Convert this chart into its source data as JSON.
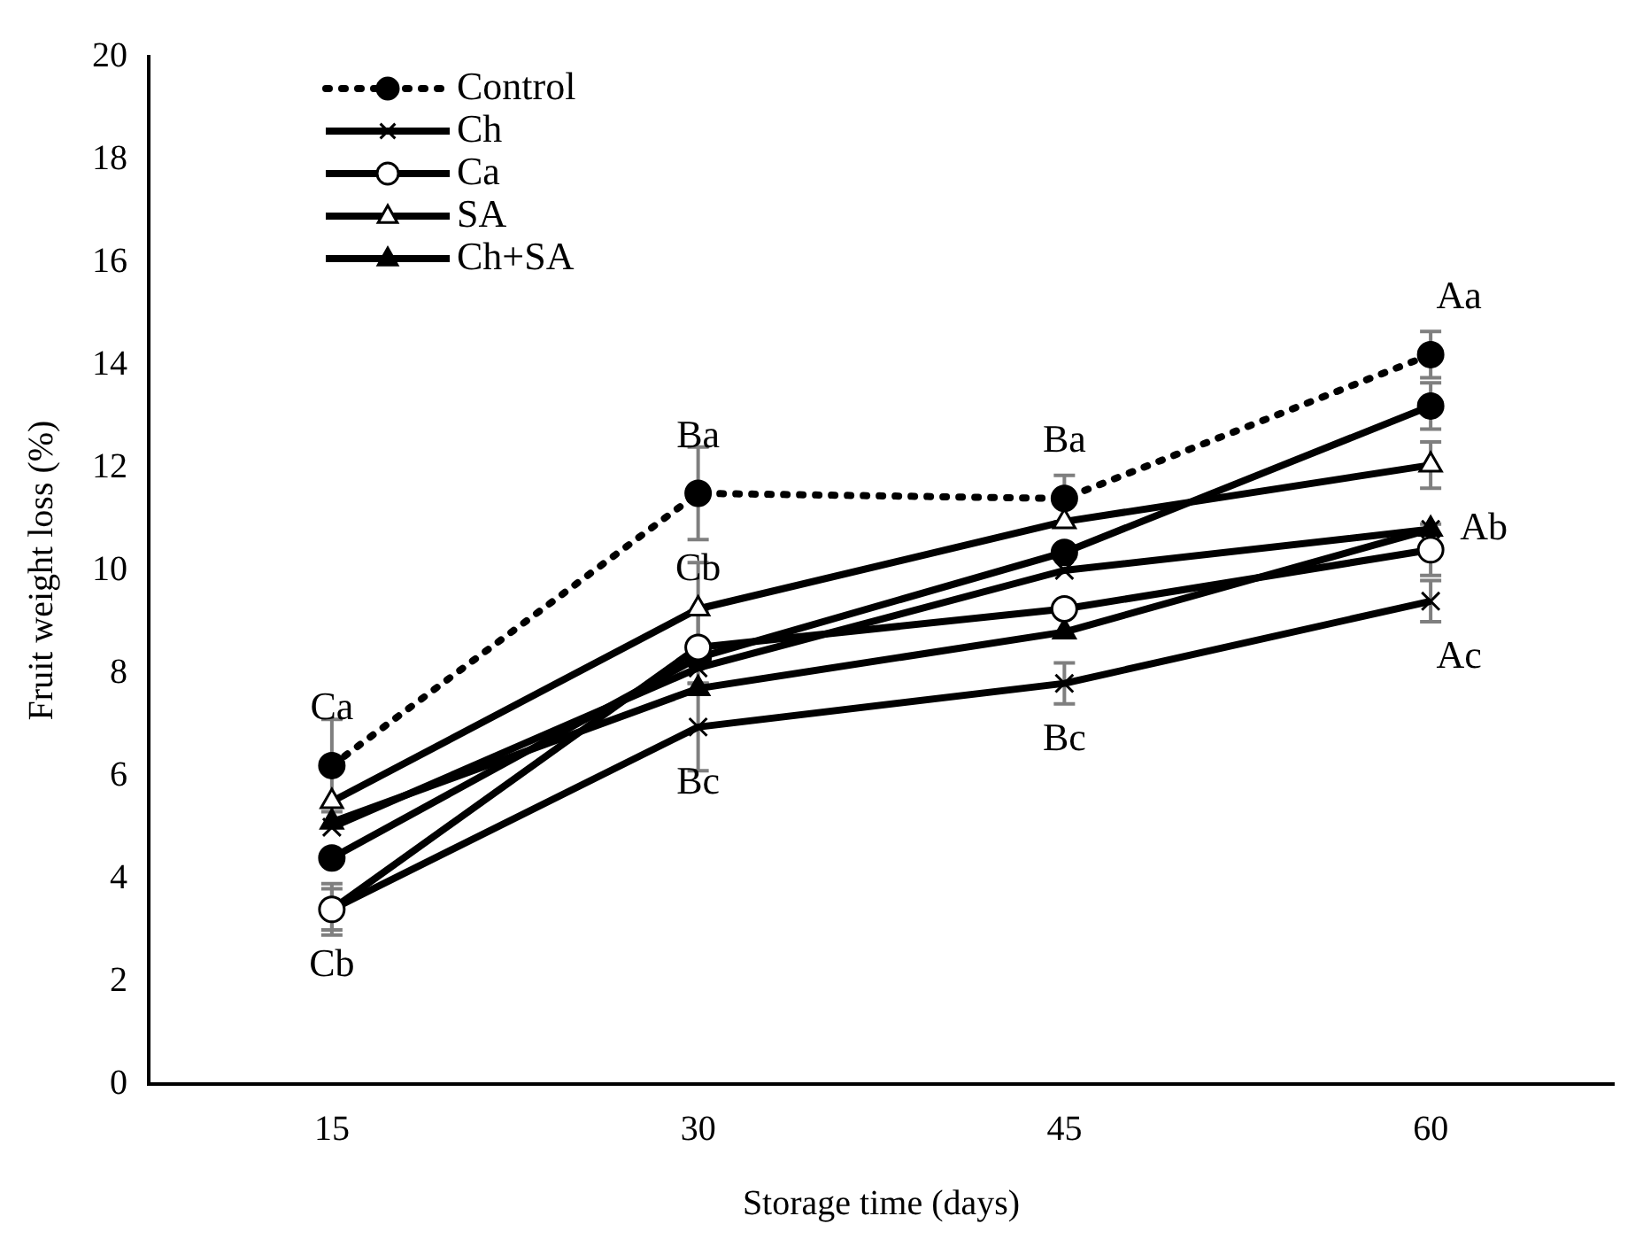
{
  "chart_data": {
    "type": "line",
    "xlabel": "Storage time (days)",
    "ylabel": "Fruit weight loss (%)",
    "categories": [
      "15",
      "30",
      "45",
      "60"
    ],
    "ylim": [
      0,
      20
    ],
    "yticks": [
      0,
      2,
      4,
      6,
      8,
      10,
      12,
      14,
      16,
      18,
      20
    ],
    "grid": false,
    "legend": "top left",
    "series": [
      {
        "name": "Control",
        "color": "#000000",
        "marker": "circle",
        "line_style": "dotted",
        "values": [
          6.2,
          11.5,
          11.4,
          14.2
        ],
        "errors": [
          0.9,
          0.9,
          0.45,
          0.45
        ]
      },
      {
        "name": "Ch",
        "color": "#000000",
        "marker": "cross",
        "line_style": "solid",
        "values": [
          5.0,
          8.1,
          10.0,
          10.8
        ]
      },
      {
        "name": "Ca",
        "color": "#000000",
        "colors": [
          "#ffffff",
          "#ffffff",
          "#ffffff",
          "#ffffff"
        ],
        "marker": "circle",
        "line_style": "solid",
        "values": [
          3.4,
          8.5,
          9.25,
          10.4
        ],
        "errors": [
          0.5,
          0.7,
          null,
          0.5
        ]
      },
      {
        "name": "SA",
        "color": "#000000",
        "colors": [
          "#ffffff",
          "#ffffff",
          "#ffffff",
          "#ffffff"
        ],
        "marker": "triangle",
        "line_style": "solid",
        "values": [
          5.5,
          9.25,
          10.95,
          12.05
        ],
        "errors": [
          null,
          0.9,
          null,
          0.45
        ]
      },
      {
        "name": "Ch+SA",
        "color": "#000000",
        "marker": "triangle",
        "line_style": "solid",
        "values": [
          5.1,
          7.7,
          8.8,
          10.8
        ]
      },
      {
        "color": "#000000",
        "marker": "circle",
        "line_style": "solid",
        "values": [
          4.4,
          8.3,
          10.35,
          13.2
        ],
        "errors": [
          null,
          null,
          null,
          0.45
        ]
      },
      {
        "color": "#000000",
        "marker": "cross",
        "line_style": "solid",
        "values": [
          3.4,
          6.95,
          7.8,
          9.4
        ],
        "errors": [
          0.4,
          0.85,
          0.4,
          0.4
        ]
      }
    ],
    "annotations": [
      {
        "text": "Ca",
        "x": "15",
        "y": 6.2
      },
      {
        "text": "Cb",
        "x": "15",
        "y": 3.4
      },
      {
        "text": "Ba",
        "x": "30",
        "y": 11.5
      },
      {
        "text": "Cb",
        "x": "30",
        "y": 9.25
      },
      {
        "text": "Bc",
        "x": "30",
        "y": 6.95
      },
      {
        "text": "Ba",
        "x": "45",
        "y": 11.4
      },
      {
        "text": "Bc",
        "x": "45",
        "y": 7.8
      },
      {
        "text": "Aa",
        "x": "60",
        "y": 14.2
      },
      {
        "text": "Ab",
        "x": "60",
        "y": 10.8
      },
      {
        "text": "Ac",
        "x": "60",
        "y": 9.4
      }
    ]
  }
}
